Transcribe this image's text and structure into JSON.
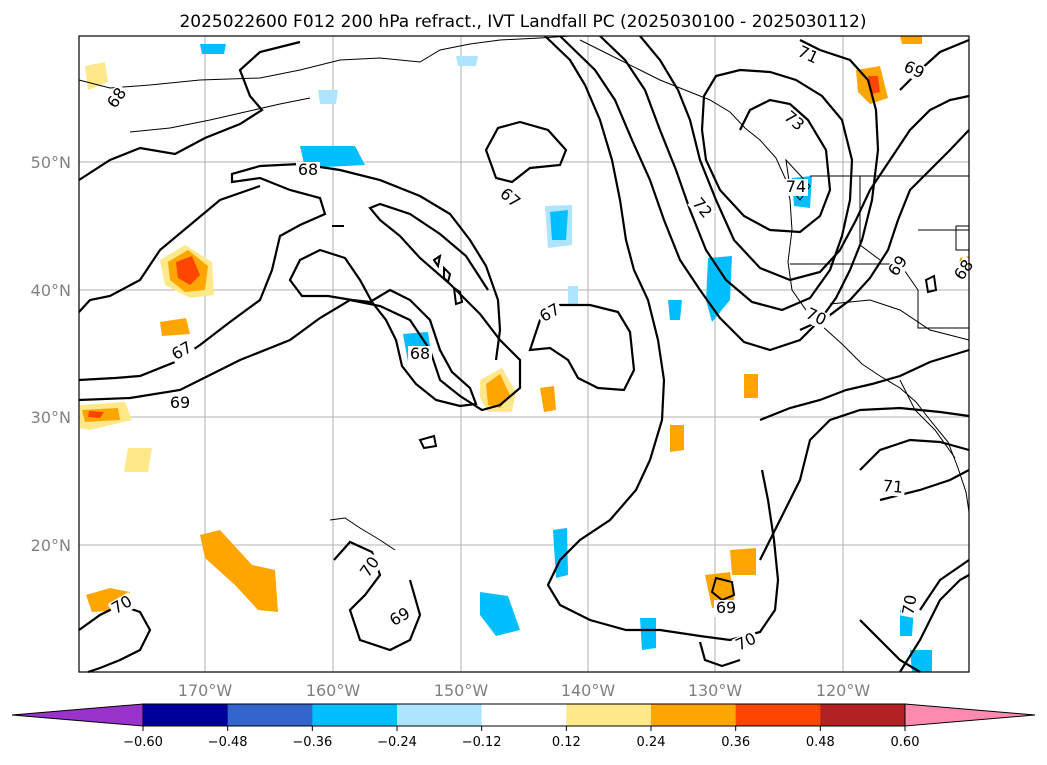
{
  "title": "2025022600 F012 200 hPa refract., IVT Landfall PC (2025030100 - 2025030112)",
  "map": {
    "lat_ticks": [
      "50°N",
      "40°N",
      "30°N",
      "20°N"
    ],
    "lon_ticks": [
      "170°W",
      "160°W",
      "150°W",
      "140°W",
      "130°W",
      "120°W"
    ],
    "grid": true,
    "contour_labels": [
      "68",
      "68",
      "67",
      "67",
      "69",
      "67",
      "68",
      "69",
      "72",
      "73",
      "71",
      "69",
      "74",
      "70",
      "71",
      "70",
      "70",
      "69",
      "70",
      "70",
      "69",
      "68"
    ]
  },
  "colorbar": {
    "ticks": [
      "−0.60",
      "−0.48",
      "−0.36",
      "−0.24",
      "−0.12",
      "0.12",
      "0.24",
      "0.36",
      "0.48",
      "0.60"
    ],
    "colors": [
      "#9933cc",
      "#000099",
      "#3366cc",
      "#00bfff",
      "#aee4ff",
      "#ffffff",
      "#ffe88a",
      "#ffa500",
      "#ff4500",
      "#b22222",
      "#ff8ab0"
    ],
    "extend": "both"
  },
  "colors": {
    "positive_fill": "#ffa500",
    "negative_fill": "#00bfff",
    "grid": "#b0b0b0"
  }
}
